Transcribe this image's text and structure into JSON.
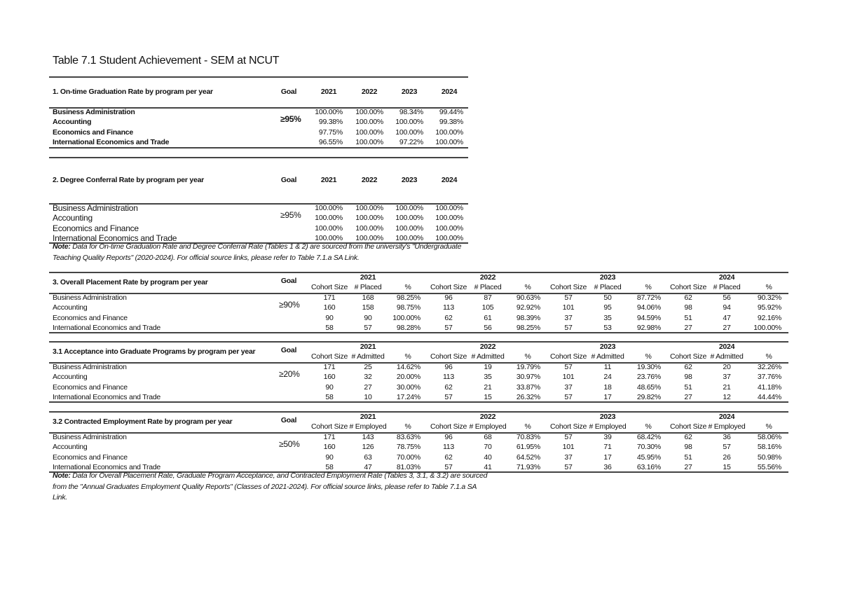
{
  "title": "Table 7.1 Student Achievement - SEM at NCUT",
  "table1": {
    "heading": "1. On-time Graduation Rate by program per year",
    "goal_label": "Goal",
    "goal": "≥95%",
    "years": [
      "2021",
      "2022",
      "2023",
      "2024"
    ],
    "rows": [
      {
        "program": "Business Administration",
        "values": [
          "100.00%",
          "100.00%",
          "98.34%",
          "99.44%"
        ]
      },
      {
        "program": "Accounting",
        "values": [
          "99.38%",
          "100.00%",
          "100.00%",
          "99.38%"
        ]
      },
      {
        "program": "Economics and Finance",
        "values": [
          "97.75%",
          "100.00%",
          "100.00%",
          "100.00%"
        ]
      },
      {
        "program": "International Economics and Trade",
        "values": [
          "96.55%",
          "100.00%",
          "97.22%",
          "100.00%"
        ]
      }
    ]
  },
  "table2": {
    "heading": "2. Degree Conferral Rate by program per year",
    "goal_label": "Goal",
    "goal": "≥95%",
    "years": [
      "2021",
      "2022",
      "2023",
      "2024"
    ],
    "rows": [
      {
        "program": "Business Administration",
        "values": [
          "100.00%",
          "100.00%",
          "100.00%",
          "100.00%"
        ]
      },
      {
        "program": "Accounting",
        "values": [
          "100.00%",
          "100.00%",
          "100.00%",
          "100.00%"
        ]
      },
      {
        "program": "Economics and Finance",
        "values": [
          "100.00%",
          "100.00%",
          "100.00%",
          "100.00%"
        ]
      },
      {
        "program": "International Economics and Trade",
        "values": [
          "100.00%",
          "100.00%",
          "100.00%",
          "100.00%"
        ]
      }
    ]
  },
  "note1": {
    "label": "Note:",
    "lines": [
      "Data for On-time Graduation Rate and Degree Conferral Rate (Tables 1 & 2) are sourced from the university's \"Undergraduate",
      "Teaching Quality Reports\" (2020-2024). For official source links, please refer to Table 7.1.a SA Link."
    ]
  },
  "table3": {
    "heading": "3. Overall Placement Rate by program per year",
    "goal_label": "Goal",
    "goal": "≥90%",
    "years": [
      "2021",
      "2022",
      "2023",
      "2024"
    ],
    "subheaders": [
      "Cohort Size",
      "# Placed",
      "%"
    ],
    "rows": [
      {
        "program": "Business Administration",
        "values": [
          "171",
          "168",
          "98.25%",
          "96",
          "87",
          "90.63%",
          "57",
          "50",
          "87.72%",
          "62",
          "56",
          "90.32%"
        ]
      },
      {
        "program": "Accounting",
        "values": [
          "160",
          "158",
          "98.75%",
          "113",
          "105",
          "92.92%",
          "101",
          "95",
          "94.06%",
          "98",
          "94",
          "95.92%"
        ]
      },
      {
        "program": "Economics and Finance",
        "values": [
          "90",
          "90",
          "100.00%",
          "62",
          "61",
          "98.39%",
          "37",
          "35",
          "94.59%",
          "51",
          "47",
          "92.16%"
        ]
      },
      {
        "program": "International Economics and Trade",
        "values": [
          "58",
          "57",
          "98.28%",
          "57",
          "56",
          "98.25%",
          "57",
          "53",
          "92.98%",
          "27",
          "27",
          "100.00%"
        ]
      }
    ]
  },
  "table31": {
    "heading": "3.1 Acceptance into Graduate Programs by program per year",
    "goal_label": "Goal",
    "goal": "≥20%",
    "years": [
      "2021",
      "2022",
      "2023",
      "2024"
    ],
    "subheaders": [
      "Cohort Size",
      "# Admitted",
      "%"
    ],
    "rows": [
      {
        "program": "Business Administration",
        "values": [
          "171",
          "25",
          "14.62%",
          "96",
          "19",
          "19.79%",
          "57",
          "11",
          "19.30%",
          "62",
          "20",
          "32.26%"
        ]
      },
      {
        "program": "Accounting",
        "values": [
          "160",
          "32",
          "20.00%",
          "113",
          "35",
          "30.97%",
          "101",
          "24",
          "23.76%",
          "98",
          "37",
          "37.76%"
        ]
      },
      {
        "program": "Economics and Finance",
        "values": [
          "90",
          "27",
          "30.00%",
          "62",
          "21",
          "33.87%",
          "37",
          "18",
          "48.65%",
          "51",
          "21",
          "41.18%"
        ]
      },
      {
        "program": "International Economics and Trade",
        "values": [
          "58",
          "10",
          "17.24%",
          "57",
          "15",
          "26.32%",
          "57",
          "17",
          "29.82%",
          "27",
          "12",
          "44.44%"
        ]
      }
    ]
  },
  "table32": {
    "heading": "3.2 Contracted Employment Rate by program per year",
    "goal_label": "Goal",
    "goal": "≥50%",
    "years": [
      "2021",
      "2022",
      "2023",
      "2024"
    ],
    "subheaders": [
      "Cohort Size",
      "# Employed",
      "%"
    ],
    "rows": [
      {
        "program": "Business Administration",
        "values": [
          "171",
          "143",
          "83.63%",
          "96",
          "68",
          "70.83%",
          "57",
          "39",
          "68.42%",
          "62",
          "36",
          "58.06%"
        ]
      },
      {
        "program": "Accounting",
        "values": [
          "160",
          "126",
          "78.75%",
          "113",
          "70",
          "61.95%",
          "101",
          "71",
          "70.30%",
          "98",
          "57",
          "58.16%"
        ]
      },
      {
        "program": "Economics and Finance",
        "values": [
          "90",
          "63",
          "70.00%",
          "62",
          "40",
          "64.52%",
          "37",
          "17",
          "45.95%",
          "51",
          "26",
          "50.98%"
        ]
      },
      {
        "program": "International Economics and Trade",
        "values": [
          "58",
          "47",
          "81.03%",
          "57",
          "41",
          "71.93%",
          "57",
          "36",
          "63.16%",
          "27",
          "15",
          "55.56%"
        ]
      }
    ]
  },
  "note2": {
    "label": "Note:",
    "lines": [
      "Data for Overall Placement Rate, Graduate Program Acceptance, and Contracted Employment Rate (Tables 3, 3.1, & 3.2) are sourced",
      "from the \"Annual Graduates Employment Quality Reports\" (Classes of 2021-2024). For official source links, please refer to Table 7.1.a SA",
      "Link."
    ]
  }
}
